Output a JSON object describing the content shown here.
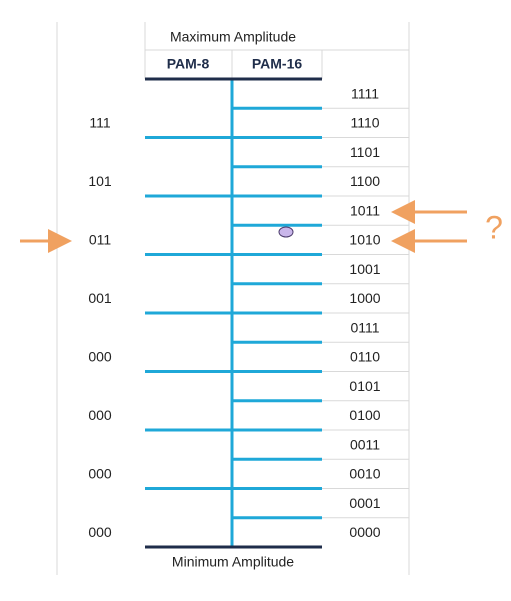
{
  "title": "Maximum Amplitude",
  "headers": [
    "PAM-8",
    "PAM-16"
  ],
  "pam8_labels": [
    "111",
    "101",
    "011",
    "001",
    "000",
    "000",
    "000",
    "000"
  ],
  "pam16_labels": [
    "1111",
    "1110",
    "1101",
    "1100",
    "1011",
    "1010",
    "1001",
    "1000",
    "0111",
    "0110",
    "0101",
    "0100",
    "0011",
    "0010",
    "0001",
    "0000"
  ],
  "annotation": "?",
  "footer": "Minimum Amplitude"
}
